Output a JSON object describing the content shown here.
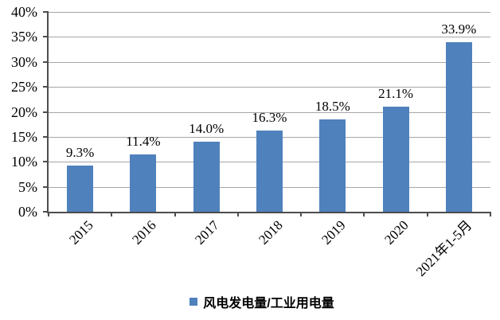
{
  "chart_data": {
    "type": "bar",
    "title": "",
    "xlabel": "",
    "ylabel": "",
    "categories": [
      "2015",
      "2016",
      "2017",
      "2018",
      "2019",
      "2020",
      "2021年1-5月"
    ],
    "values": [
      9.3,
      11.4,
      14.0,
      16.3,
      18.5,
      21.1,
      33.9
    ],
    "value_labels": [
      "9.3%",
      "11.4%",
      "14.0%",
      "16.3%",
      "18.5%",
      "21.1%",
      "33.9%"
    ],
    "series_name": "风电发电量/工业用电量",
    "ylim": [
      0,
      40
    ],
    "ytick_step": 5,
    "ytick_labels": [
      "0%",
      "5%",
      "10%",
      "15%",
      "20%",
      "25%",
      "30%",
      "35%",
      "40%"
    ],
    "grid": true,
    "legend_position": "bottom",
    "xlabel_rotation_deg": 45
  },
  "legend": {
    "label": "风电发电量/工业用电量",
    "marker": "square"
  },
  "colors": {
    "bar": "#4f81bd",
    "gridline": "#a6a6a6",
    "axis": "#4d4d4d",
    "label_text": "#000000",
    "background": "#ffffff"
  }
}
